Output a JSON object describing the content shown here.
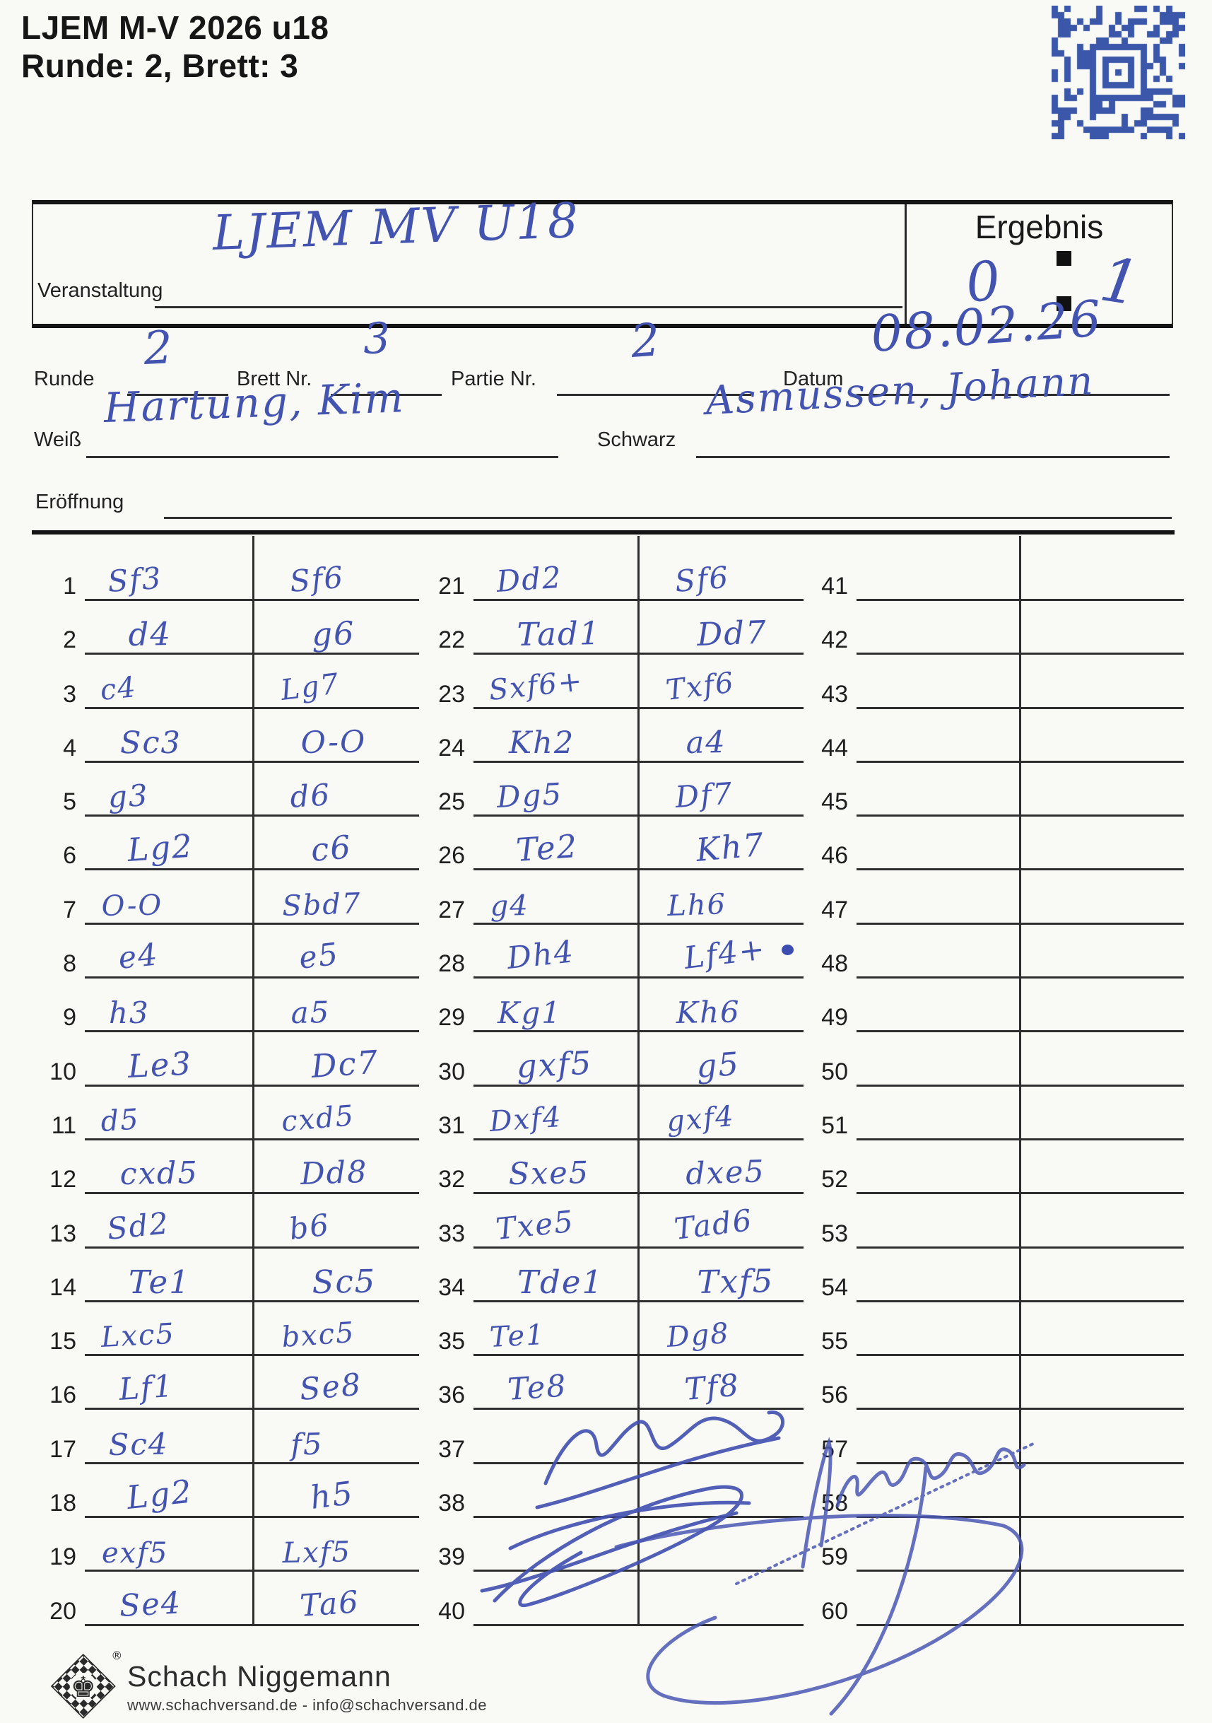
{
  "page": {
    "title_line1": "LJEM M-V 2026 u18",
    "title_line2": "Runde: 2, Brett: 3"
  },
  "form": {
    "veranstaltung_label": "Veranstaltung",
    "veranstaltung_value": "LJEM MV U18",
    "ergebnis_label": "Ergebnis",
    "ergebnis_white": "0",
    "ergebnis_black": "1",
    "runde_label": "Runde",
    "runde_value": "2",
    "brett_label": "Brett Nr.",
    "brett_value": "3",
    "partie_label": "Partie Nr.",
    "partie_value": "2",
    "datum_label": "Datum",
    "datum_value": "08.02.26",
    "weiss_label": "Weiß",
    "weiss_value": "Hartung, Kim",
    "schwarz_label": "Schwarz",
    "schwarz_value": "Asmussen, Johann",
    "eroeffnung_label": "Eröffnung",
    "eroeffnung_value": ""
  },
  "moves": {
    "groups": [
      {
        "start": 1,
        "white": [
          "Sf3",
          "d4",
          "c4",
          "Sc3",
          "g3",
          "Lg2",
          "O-O",
          "e4",
          "h3",
          "Le3",
          "d5",
          "cxd5",
          "Sd2",
          "Te1",
          "Lxc5",
          "Lf1",
          "Sc4",
          "Lg2",
          "exf5",
          "Se4"
        ],
        "black": [
          "Sf6",
          "g6",
          "Lg7",
          "O-O",
          "d6",
          "c6",
          "Sbd7",
          "e5",
          "a5",
          "Dc7",
          "cxd5",
          "Dd8",
          "b6",
          "Sc5",
          "bxc5",
          "Se8",
          "f5",
          "h5",
          "Lxf5",
          "Ta6"
        ]
      },
      {
        "start": 21,
        "white": [
          "Dd2",
          "Tad1",
          "Sxf6+",
          "Kh2",
          "Dg5",
          "Te2",
          "g4",
          "Dh4",
          "Kg1",
          "gxf5",
          "Dxf4",
          "Sxe5",
          "Txe5",
          "Tde1",
          "Te1",
          "Te8",
          "",
          "",
          "",
          ""
        ],
        "black": [
          "Sf6",
          "Dd7",
          "Txf6",
          "a4",
          "Df7",
          "Kh7",
          "Lh6",
          "Lf4+",
          "Kh6",
          "g5",
          "gxf4",
          "dxe5",
          "Tad6",
          "Txf5",
          "Dg8",
          "Tf8",
          "",
          "",
          "",
          ""
        ]
      },
      {
        "start": 41,
        "white": [
          "",
          "",
          "",
          "",
          "",
          "",
          "",
          "",
          "",
          "",
          "",
          "",
          "",
          "",
          "",
          "",
          "",
          "",
          "",
          ""
        ],
        "black": [
          "",
          "",
          "",
          "",
          "",
          "",
          "",
          "",
          "",
          "",
          "",
          "",
          "",
          "",
          "",
          "",
          "",
          "",
          "",
          ""
        ]
      }
    ]
  },
  "footer": {
    "brand": "Schach Niggemann",
    "contact": "www.schachversand.de  -  info@schachversand.de",
    "registered_mark": "®"
  },
  "colors": {
    "ink": "#4353b0",
    "line": "#2e2e2e",
    "code_blue": "#3a57a9",
    "paper": "#f9f9f6"
  }
}
